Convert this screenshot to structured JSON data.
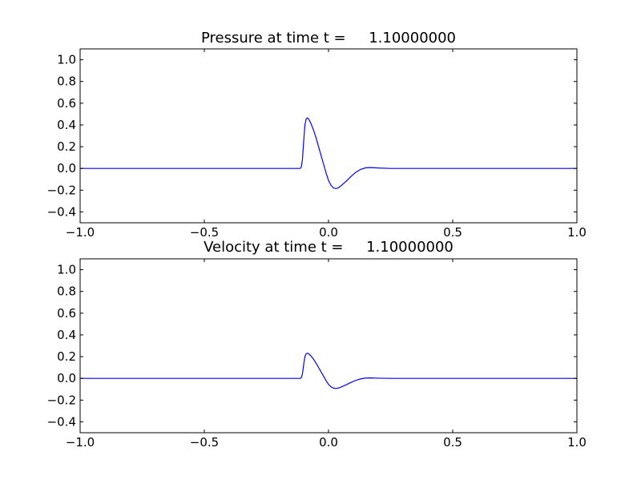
{
  "chart_data": [
    {
      "type": "line",
      "title": "Pressure at time t =     1.10000000",
      "xlim": [
        -1.0,
        1.0
      ],
      "ylim": [
        -0.5,
        1.1
      ],
      "xticks": [
        "−1.0",
        "−0.5",
        "0.0",
        "0.5",
        "1.0"
      ],
      "xtick_values": [
        -1.0,
        -0.5,
        0.0,
        0.5,
        1.0
      ],
      "yticks": [
        "−0.4",
        "−0.2",
        "0.0",
        "0.2",
        "0.4",
        "0.6",
        "0.8",
        "1.0"
      ],
      "ytick_values": [
        -0.4,
        -0.2,
        0.0,
        0.2,
        0.4,
        0.6,
        0.8,
        1.0
      ],
      "grid": false,
      "color": "#0000ff",
      "x": [
        -1.0,
        -0.115,
        -0.11,
        -0.105,
        -0.1,
        -0.095,
        -0.09,
        -0.085,
        -0.08,
        -0.07,
        -0.06,
        -0.05,
        -0.04,
        -0.03,
        -0.02,
        -0.01,
        0.0,
        0.01,
        0.02,
        0.03,
        0.04,
        0.05,
        0.07,
        0.09,
        0.11,
        0.13,
        0.15,
        0.17,
        0.2,
        0.25,
        1.0
      ],
      "y": [
        0,
        0,
        0.01,
        0.08,
        0.25,
        0.4,
        0.455,
        0.465,
        0.455,
        0.41,
        0.35,
        0.28,
        0.2,
        0.12,
        0.04,
        -0.04,
        -0.11,
        -0.155,
        -0.18,
        -0.185,
        -0.178,
        -0.16,
        -0.12,
        -0.075,
        -0.035,
        -0.008,
        0.006,
        0.008,
        0.004,
        0,
        0
      ]
    },
    {
      "type": "line",
      "title": "Velocity at time t =     1.10000000",
      "xlim": [
        -1.0,
        1.0
      ],
      "ylim": [
        -0.5,
        1.1
      ],
      "xticks": [
        "−1.0",
        "−0.5",
        "0.0",
        "0.5",
        "1.0"
      ],
      "xtick_values": [
        -1.0,
        -0.5,
        0.0,
        0.5,
        1.0
      ],
      "yticks": [
        "−0.4",
        "−0.2",
        "0.0",
        "0.2",
        "0.4",
        "0.6",
        "0.8",
        "1.0"
      ],
      "ytick_values": [
        -0.4,
        -0.2,
        0.0,
        0.2,
        0.4,
        0.6,
        0.8,
        1.0
      ],
      "grid": false,
      "color": "#0000ff",
      "x": [
        -1.0,
        -0.115,
        -0.11,
        -0.105,
        -0.1,
        -0.095,
        -0.09,
        -0.085,
        -0.08,
        -0.07,
        -0.06,
        -0.05,
        -0.04,
        -0.03,
        -0.02,
        -0.01,
        0.0,
        0.01,
        0.02,
        0.03,
        0.04,
        0.05,
        0.07,
        0.09,
        0.11,
        0.13,
        0.15,
        0.17,
        0.2,
        0.25,
        1.0
      ],
      "y": [
        0,
        0,
        0.005,
        0.04,
        0.125,
        0.2,
        0.227,
        0.232,
        0.227,
        0.205,
        0.175,
        0.14,
        0.1,
        0.06,
        0.02,
        -0.02,
        -0.055,
        -0.078,
        -0.09,
        -0.093,
        -0.089,
        -0.08,
        -0.06,
        -0.038,
        -0.018,
        -0.004,
        0.003,
        0.004,
        0.002,
        0,
        0
      ]
    }
  ]
}
